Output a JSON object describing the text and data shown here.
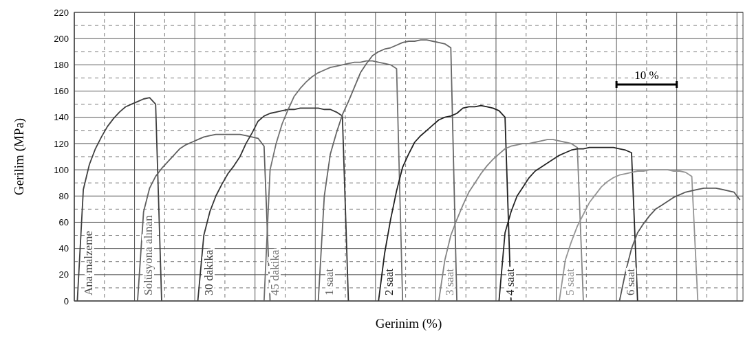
{
  "chart_data": {
    "type": "line",
    "xlabel": "Gerinim (%)",
    "ylabel": "Gerilim (MPa)",
    "categories": [
      null,
      null,
      null,
      null,
      null,
      null,
      null,
      null,
      null,
      null,
      null,
      null,
      null,
      null,
      null,
      null,
      null,
      null,
      null,
      null,
      null,
      null,
      null,
      null,
      null,
      null,
      null,
      null,
      null,
      null,
      null,
      null,
      null,
      null,
      null,
      null,
      null,
      null,
      null,
      null,
      null,
      null,
      null,
      null,
      null,
      null,
      null,
      null,
      null,
      null,
      null,
      null,
      null,
      null,
      null,
      null,
      null,
      null,
      null,
      null,
      null,
      null,
      null,
      null,
      null,
      null,
      null,
      null,
      null,
      null,
      null,
      null,
      null,
      null,
      null,
      null,
      null,
      null,
      null,
      null,
      null,
      null,
      null,
      null,
      null,
      null,
      null,
      null,
      null,
      null,
      null,
      null,
      null,
      null,
      null,
      null,
      null,
      null,
      null,
      null,
      null,
      null,
      null,
      null,
      null,
      null,
      null,
      null,
      null,
      null,
      null
    ],
    "ylim": [
      0,
      220
    ],
    "yticks": [
      0,
      20,
      40,
      60,
      80,
      100,
      120,
      140,
      160,
      180,
      200,
      220
    ],
    "tick_labels": "y",
    "grid": true,
    "marker": "none",
    "line_style": "solid",
    "annotations": [
      "10 %"
    ],
    "series": [
      {
        "name": "Ana malzeme",
        "color": "#404040",
        "values": [
          0,
          85,
          104,
          116,
          125,
          133,
          139,
          144,
          148,
          150,
          152,
          154,
          155,
          150,
          0,
          null,
          null,
          null,
          null,
          null,
          null,
          null,
          null,
          null,
          null,
          null,
          null,
          null,
          null,
          null,
          null,
          null,
          null,
          null,
          null,
          null,
          null,
          null,
          null,
          null,
          null,
          null,
          null,
          null,
          null,
          null,
          null,
          null,
          null,
          null,
          null,
          null,
          null,
          null,
          null,
          null,
          null,
          null,
          null,
          null,
          null,
          null,
          null,
          null,
          null,
          null,
          null,
          null,
          null,
          null,
          null,
          null,
          null,
          null,
          null,
          null,
          null,
          null,
          null,
          null,
          null,
          null,
          null,
          null,
          null,
          null,
          null,
          null,
          null,
          null,
          null,
          null,
          null,
          null,
          null,
          null,
          null,
          null,
          null,
          null,
          null,
          null,
          null,
          null,
          null,
          null,
          null,
          null,
          null,
          null,
          null
        ]
      },
      {
        "name": "Solüsyona alınan",
        "color": "#606060",
        "values": [
          null,
          null,
          null,
          null,
          null,
          null,
          null,
          null,
          null,
          null,
          0,
          68,
          86,
          95,
          101,
          106,
          111,
          116,
          119,
          121,
          123,
          125,
          126,
          127,
          127,
          127,
          127,
          127,
          126,
          125,
          124,
          118,
          0,
          null,
          null,
          null,
          null,
          null,
          null,
          null,
          null,
          null,
          null,
          null,
          null,
          null,
          null,
          null,
          null,
          null,
          null,
          null,
          null,
          null,
          null,
          null,
          null,
          null,
          null,
          null,
          null,
          null,
          null,
          null,
          null,
          null,
          null,
          null,
          null,
          null,
          null,
          null,
          null,
          null,
          null,
          null,
          null,
          null,
          null,
          null,
          null,
          null,
          null,
          null,
          null,
          null,
          null,
          null,
          null,
          null,
          null,
          null,
          null,
          null,
          null,
          null,
          null,
          null,
          null,
          null,
          null,
          null,
          null,
          null,
          null,
          null,
          null,
          null,
          null,
          null,
          null
        ]
      },
      {
        "name": "30 dakika",
        "color": "#353535",
        "values": [
          null,
          null,
          null,
          null,
          null,
          null,
          null,
          null,
          null,
          null,
          null,
          null,
          null,
          null,
          null,
          null,
          null,
          null,
          null,
          null,
          0,
          50,
          68,
          80,
          89,
          97,
          103,
          110,
          120,
          128,
          137,
          141,
          143,
          144,
          145,
          146,
          146,
          147,
          147,
          147,
          147,
          146,
          146,
          144,
          141,
          0,
          null,
          null,
          null,
          null,
          null,
          null,
          null,
          null,
          null,
          null,
          null,
          null,
          null,
          null,
          null,
          null,
          null,
          null,
          null,
          null,
          null,
          null,
          null,
          null,
          null,
          null,
          null,
          null,
          null,
          null,
          null,
          null,
          null,
          null,
          null,
          null,
          null,
          null,
          null,
          null,
          null,
          null,
          null,
          null,
          null,
          null,
          null,
          null,
          null,
          null,
          null,
          null,
          null,
          null,
          null,
          null,
          null,
          null,
          null,
          null,
          null,
          null,
          null,
          null,
          null
        ]
      },
      {
        "name": "45 dakika",
        "color": "#707070",
        "values": [
          null,
          null,
          null,
          null,
          null,
          null,
          null,
          null,
          null,
          null,
          null,
          null,
          null,
          null,
          null,
          null,
          null,
          null,
          null,
          null,
          null,
          null,
          null,
          null,
          null,
          null,
          null,
          null,
          null,
          null,
          null,
          0,
          100,
          120,
          135,
          146,
          156,
          162,
          167,
          171,
          174,
          176,
          178,
          179,
          180,
          181,
          182,
          182,
          183,
          183,
          182,
          181,
          180,
          177,
          0,
          null,
          null,
          null,
          null,
          null,
          null,
          null,
          null,
          null,
          null,
          null,
          null,
          null,
          null,
          null,
          null,
          null,
          null,
          null,
          null,
          null,
          null,
          null,
          null,
          null,
          null,
          null,
          null,
          null,
          null,
          null,
          null,
          null,
          null,
          null,
          null,
          null,
          null,
          null,
          null,
          null,
          null,
          null,
          null,
          null,
          null,
          null,
          null,
          null,
          null,
          null,
          null,
          null,
          null,
          null,
          null
        ]
      },
      {
        "name": "1 saat",
        "color": "#656565",
        "values": [
          null,
          null,
          null,
          null,
          null,
          null,
          null,
          null,
          null,
          null,
          null,
          null,
          null,
          null,
          null,
          null,
          null,
          null,
          null,
          null,
          null,
          null,
          null,
          null,
          null,
          null,
          null,
          null,
          null,
          null,
          null,
          null,
          null,
          null,
          null,
          null,
          null,
          null,
          null,
          null,
          0,
          80,
          112,
          128,
          142,
          152,
          163,
          174,
          181,
          187,
          190,
          192,
          193,
          195,
          197,
          198,
          198,
          199,
          199,
          198,
          197,
          196,
          193,
          0,
          null,
          null,
          null,
          null,
          null,
          null,
          null,
          null,
          null,
          null,
          null,
          null,
          null,
          null,
          null,
          null,
          null,
          null,
          null,
          null,
          null,
          null,
          null,
          null,
          null,
          null,
          null,
          null,
          null,
          null,
          null,
          null,
          null,
          null,
          null,
          null,
          null,
          null,
          null,
          null,
          null,
          null,
          null,
          null,
          null,
          null,
          null
        ]
      },
      {
        "name": "2 saat",
        "color": "#202020",
        "values": [
          null,
          null,
          null,
          null,
          null,
          null,
          null,
          null,
          null,
          null,
          null,
          null,
          null,
          null,
          null,
          null,
          null,
          null,
          null,
          null,
          null,
          null,
          null,
          null,
          null,
          null,
          null,
          null,
          null,
          null,
          null,
          null,
          null,
          null,
          null,
          null,
          null,
          null,
          null,
          null,
          null,
          null,
          null,
          null,
          null,
          null,
          null,
          null,
          null,
          null,
          0,
          36,
          62,
          84,
          102,
          112,
          121,
          126,
          130,
          134,
          138,
          140,
          141,
          143,
          147,
          148,
          148,
          149,
          148,
          147,
          145,
          140,
          0,
          null,
          null,
          null,
          null,
          null,
          null,
          null,
          null,
          null,
          null,
          null,
          null,
          null,
          null,
          null,
          null,
          null,
          null,
          null,
          null,
          null,
          null,
          null,
          null,
          null,
          null,
          null,
          null,
          null,
          null,
          null,
          null,
          null,
          null,
          null,
          null,
          null,
          null
        ]
      },
      {
        "name": "3 saat",
        "color": "#858585",
        "values": [
          null,
          null,
          null,
          null,
          null,
          null,
          null,
          null,
          null,
          null,
          null,
          null,
          null,
          null,
          null,
          null,
          null,
          null,
          null,
          null,
          null,
          null,
          null,
          null,
          null,
          null,
          null,
          null,
          null,
          null,
          null,
          null,
          null,
          null,
          null,
          null,
          null,
          null,
          null,
          null,
          null,
          null,
          null,
          null,
          null,
          null,
          null,
          null,
          null,
          null,
          null,
          null,
          null,
          null,
          null,
          null,
          null,
          null,
          null,
          null,
          0,
          31,
          50,
          62,
          73,
          83,
          90,
          97,
          103,
          108,
          112,
          116,
          118,
          119,
          120,
          120,
          121,
          122,
          123,
          123,
          122,
          121,
          120,
          117,
          0,
          null,
          null,
          null,
          null,
          null,
          null,
          null,
          null,
          null,
          null,
          null,
          null,
          null,
          null,
          null,
          null,
          null,
          null,
          null,
          null,
          null,
          null,
          null,
          null,
          null,
          null
        ]
      },
      {
        "name": "4 saat",
        "color": "#252525",
        "values": [
          null,
          null,
          null,
          null,
          null,
          null,
          null,
          null,
          null,
          null,
          null,
          null,
          null,
          null,
          null,
          null,
          null,
          null,
          null,
          null,
          null,
          null,
          null,
          null,
          null,
          null,
          null,
          null,
          null,
          null,
          null,
          null,
          null,
          null,
          null,
          null,
          null,
          null,
          null,
          null,
          null,
          null,
          null,
          null,
          null,
          null,
          null,
          null,
          null,
          null,
          null,
          null,
          null,
          null,
          null,
          null,
          null,
          null,
          null,
          null,
          null,
          null,
          null,
          null,
          null,
          null,
          null,
          null,
          null,
          null,
          0,
          52,
          68,
          80,
          87,
          94,
          99,
          102,
          105,
          108,
          111,
          113,
          115,
          116,
          116,
          117,
          117,
          117,
          117,
          117,
          116,
          115,
          113,
          0,
          null,
          null,
          null,
          null,
          null,
          null,
          null,
          null,
          null,
          null,
          null,
          null,
          null,
          null,
          null,
          null,
          null
        ]
      },
      {
        "name": "5 saat",
        "color": "#959595",
        "values": [
          null,
          null,
          null,
          null,
          null,
          null,
          null,
          null,
          null,
          null,
          null,
          null,
          null,
          null,
          null,
          null,
          null,
          null,
          null,
          null,
          null,
          null,
          null,
          null,
          null,
          null,
          null,
          null,
          null,
          null,
          null,
          null,
          null,
          null,
          null,
          null,
          null,
          null,
          null,
          null,
          null,
          null,
          null,
          null,
          null,
          null,
          null,
          null,
          null,
          null,
          null,
          null,
          null,
          null,
          null,
          null,
          null,
          null,
          null,
          null,
          null,
          null,
          null,
          null,
          null,
          null,
          null,
          null,
          null,
          null,
          null,
          null,
          null,
          null,
          null,
          null,
          null,
          null,
          null,
          null,
          0,
          31,
          45,
          57,
          66,
          75,
          81,
          87,
          91,
          94,
          96,
          97,
          98,
          99,
          99,
          100,
          100,
          100,
          100,
          99,
          99,
          98,
          95,
          0,
          null,
          null,
          null,
          null,
          null,
          null,
          null
        ]
      },
      {
        "name": "6 saat",
        "color": "#555555",
        "values": [
          null,
          null,
          null,
          null,
          null,
          null,
          null,
          null,
          null,
          null,
          null,
          null,
          null,
          null,
          null,
          null,
          null,
          null,
          null,
          null,
          null,
          null,
          null,
          null,
          null,
          null,
          null,
          null,
          null,
          null,
          null,
          null,
          null,
          null,
          null,
          null,
          null,
          null,
          null,
          null,
          null,
          null,
          null,
          null,
          null,
          null,
          null,
          null,
          null,
          null,
          null,
          null,
          null,
          null,
          null,
          null,
          null,
          null,
          null,
          null,
          null,
          null,
          null,
          null,
          null,
          null,
          null,
          null,
          null,
          null,
          null,
          null,
          null,
          null,
          null,
          null,
          null,
          null,
          null,
          null,
          null,
          null,
          null,
          null,
          null,
          null,
          null,
          null,
          null,
          null,
          0,
          22,
          40,
          52,
          59,
          65,
          70,
          73,
          76,
          79,
          81,
          83,
          84,
          85,
          86,
          86,
          86,
          85,
          84,
          83,
          77
        ]
      }
    ]
  }
}
